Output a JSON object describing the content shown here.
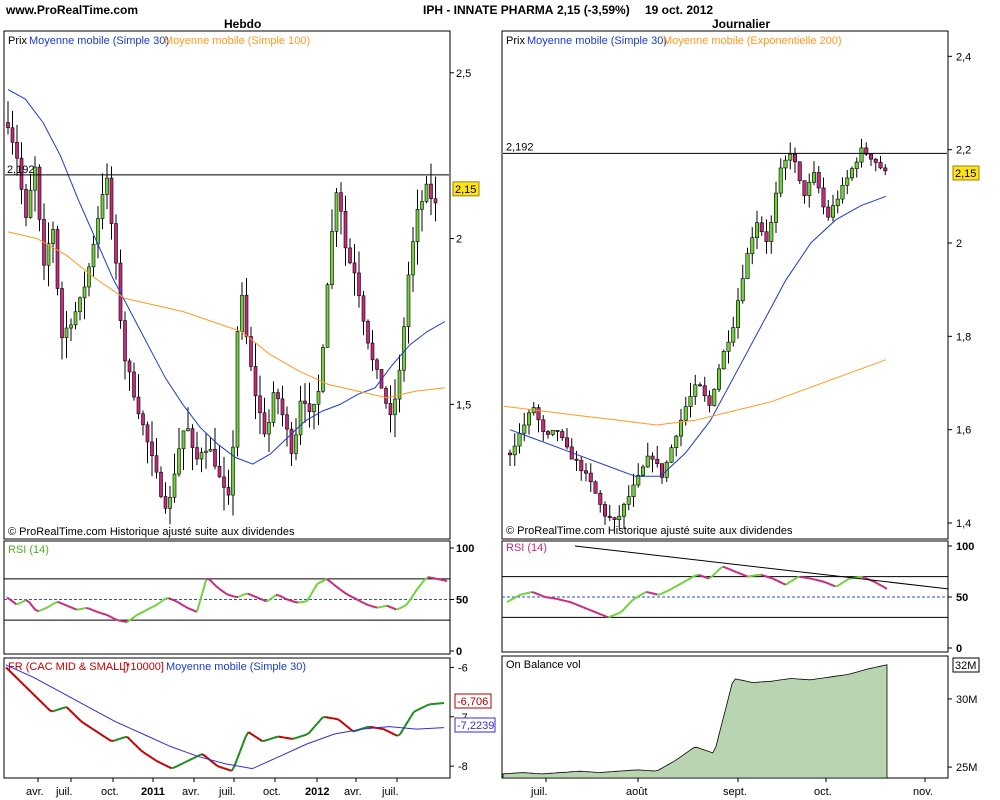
{
  "header": {
    "site": "www.ProRealTime.com",
    "ticker": "IPH - INNATE PHARMA",
    "quote": "2,15 (-3,59%)",
    "date": "19 oct. 2012",
    "left_title": "Hebdo",
    "right_title": "Journalier"
  },
  "legend": {
    "prix": "Prix",
    "ma30": "Moyenne mobile (Simple 30)",
    "ma100": "Moyenne mobile (Simple 100)",
    "ema200": "Moyenne mobile (Exponentielle 200)",
    "rsi": "RSI (14)",
    "rs_prefix": "FR (CAC MID & SMALL)",
    "rs_mult": "[*10000]",
    "obv": "On Balance vol",
    "copyright": "© ProRealTime.com  Historique ajusté suite aux dividendes"
  },
  "colors": {
    "up": "#6fd23a",
    "down": "#c8287d",
    "ma30": "#1a3cc8",
    "ma100": "#ff9a1f",
    "obv_fill": "#b8d4b0",
    "highlight": "#ffe21a",
    "value_box_red": "#b00000"
  },
  "chart_data": [
    {
      "id": "weekly_price",
      "type": "candlestick",
      "title": "Hebdo",
      "ylim": [
        1.1,
        2.62
      ],
      "yticks": [
        1.5,
        2,
        2.5
      ],
      "ytick_labels": [
        "1,5",
        "2",
        "2,5"
      ],
      "hline": 2.192,
      "hline_label": "2,192",
      "last_value": "2,15",
      "x_labels": [
        "avr.",
        "juil.",
        "oct.",
        "2011",
        "avr.",
        "juil.",
        "oct.",
        "2012",
        "avr.",
        "juil."
      ],
      "close_path": [
        2.35,
        2.25,
        2.05,
        2.22,
        1.9,
        2.05,
        1.7,
        1.75,
        1.8,
        1.9,
        2.05,
        2.2,
        1.95,
        1.65,
        1.55,
        1.45,
        1.35,
        1.25,
        1.18,
        1.35,
        1.45,
        1.32,
        1.38,
        1.35,
        1.25,
        1.2,
        1.88,
        1.65,
        1.5,
        1.4,
        1.55,
        1.45,
        1.35,
        1.55,
        1.45,
        1.55,
        1.92,
        2.18,
        1.95,
        1.9,
        1.75,
        1.62,
        1.55,
        1.45,
        1.6,
        1.9,
        2.08,
        2.15,
        2.1
      ],
      "ma30": [
        2.45,
        2.42,
        2.35,
        2.25,
        2.12,
        2.0,
        1.88,
        1.78,
        1.68,
        1.58,
        1.5,
        1.43,
        1.38,
        1.34,
        1.32,
        1.35,
        1.4,
        1.45,
        1.48,
        1.5,
        1.53,
        1.55,
        1.62,
        1.68,
        1.72,
        1.75
      ],
      "ma100": [
        2.02,
        2.0,
        1.95,
        1.88,
        1.82,
        1.8,
        1.78,
        1.75,
        1.72,
        1.65,
        1.6,
        1.56,
        1.54,
        1.52,
        1.54,
        1.55
      ]
    },
    {
      "id": "daily_price",
      "type": "candlestick",
      "title": "Journalier",
      "ylim": [
        1.37,
        2.45
      ],
      "yticks": [
        1.4,
        1.6,
        1.8,
        2,
        2.2,
        2.4
      ],
      "ytick_labels": [
        "1,4",
        "1,6",
        "1,8",
        "2",
        "2,2",
        "2,4"
      ],
      "hline": 2.192,
      "hline_label": "2,192",
      "last_value": "2,15",
      "x_labels": [
        "juil.",
        "août",
        "sept.",
        "oct.",
        "nov."
      ],
      "close_path": [
        1.55,
        1.6,
        1.65,
        1.58,
        1.6,
        1.55,
        1.52,
        1.48,
        1.42,
        1.4,
        1.45,
        1.5,
        1.55,
        1.5,
        1.58,
        1.65,
        1.7,
        1.65,
        1.75,
        1.82,
        1.95,
        2.05,
        2.0,
        2.15,
        2.2,
        2.1,
        2.15,
        2.05,
        2.1,
        2.15,
        2.2,
        2.18,
        2.15
      ],
      "ma30": [
        1.6,
        1.58,
        1.56,
        1.54,
        1.52,
        1.5,
        1.5,
        1.55,
        1.62,
        1.72,
        1.82,
        1.92,
        2.0,
        2.05,
        2.08,
        2.1
      ],
      "ema200": [
        1.65,
        1.64,
        1.63,
        1.62,
        1.61,
        1.62,
        1.64,
        1.66,
        1.69,
        1.72,
        1.75
      ]
    },
    {
      "id": "weekly_rsi",
      "type": "line",
      "title": "RSI (14)",
      "ylim": [
        0,
        100
      ],
      "yticks": [
        0,
        50,
        100
      ],
      "bands": [
        30,
        50,
        70
      ],
      "values": [
        52,
        45,
        50,
        38,
        42,
        48,
        44,
        40,
        42,
        38,
        35,
        30,
        28,
        35,
        40,
        45,
        52,
        48,
        42,
        38,
        72,
        62,
        55,
        52,
        56,
        52,
        48,
        55,
        50,
        47,
        48,
        65,
        70,
        62,
        55,
        50,
        45,
        42,
        44,
        40,
        45,
        60,
        72,
        70,
        68
      ]
    },
    {
      "id": "relative_strength",
      "type": "line",
      "title": "FR (CAC MID & SMALL) [*10000]",
      "ylim": [
        -8.2,
        -5.85
      ],
      "yticks": [
        -8,
        -7,
        -6
      ],
      "last_value": "-6,706",
      "ma_last_value": "-7,2239",
      "values": [
        -6.0,
        -6.3,
        -6.6,
        -6.9,
        -6.8,
        -7.1,
        -7.3,
        -7.5,
        -7.4,
        -7.7,
        -7.9,
        -8.05,
        -7.9,
        -7.75,
        -8.0,
        -8.1,
        -7.3,
        -7.5,
        -7.4,
        -7.45,
        -7.35,
        -7.0,
        -7.05,
        -7.3,
        -7.2,
        -7.25,
        -7.4,
        -6.9,
        -6.75,
        -6.72
      ],
      "ma30": [
        -5.95,
        -6.2,
        -6.5,
        -6.8,
        -7.1,
        -7.35,
        -7.6,
        -7.8,
        -7.95,
        -8.05,
        -7.8,
        -7.55,
        -7.35,
        -7.25,
        -7.2,
        -7.25,
        -7.22
      ]
    },
    {
      "id": "daily_rsi",
      "type": "line",
      "title": "RSI (14)",
      "ylim": [
        0,
        100
      ],
      "yticks": [
        0,
        50,
        100
      ],
      "bands": [
        30,
        50,
        70
      ],
      "values": [
        45,
        52,
        55,
        50,
        48,
        45,
        40,
        35,
        30,
        35,
        48,
        55,
        52,
        58,
        65,
        72,
        68,
        80,
        75,
        70,
        72,
        68,
        62,
        70,
        68,
        65,
        60,
        68,
        70,
        65,
        58
      ],
      "trendline": [
        [
          0,
          100
        ],
        [
          1,
          58
        ]
      ]
    },
    {
      "id": "daily_obv",
      "type": "area",
      "title": "On Balance vol",
      "ylim": [
        24.2,
        33
      ],
      "yticks": [
        25,
        30
      ],
      "ytick_labels": [
        "25M",
        "30M"
      ],
      "last_value": "32M",
      "values": [
        24.5,
        24.6,
        24.5,
        24.6,
        24.7,
        24.6,
        24.7,
        24.8,
        24.7,
        25.5,
        26.5,
        26.0,
        31.5,
        31.2,
        31.3,
        31.5,
        31.4,
        31.6,
        31.8,
        32.2,
        32.5
      ]
    }
  ]
}
